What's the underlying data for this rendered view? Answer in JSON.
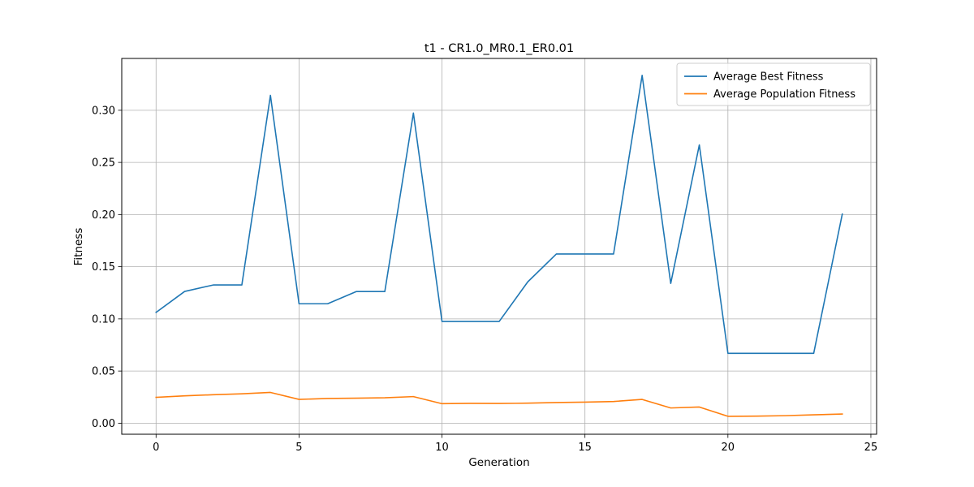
{
  "chart_data": {
    "type": "line",
    "title": "t1 - CR1.0_MR0.1_ER0.01",
    "xlabel": "Generation",
    "ylabel": "Fitness",
    "xlim": [
      -1.2,
      25.2
    ],
    "ylim": [
      -0.0106,
      0.3497
    ],
    "xticks": [
      0,
      5,
      10,
      15,
      20,
      25
    ],
    "yticks": [
      0.0,
      0.05,
      0.1,
      0.15,
      0.2,
      0.25,
      0.3
    ],
    "ytick_labels": [
      "0.00",
      "0.05",
      "0.10",
      "0.15",
      "0.20",
      "0.25",
      "0.30"
    ],
    "grid": true,
    "legend_position": "top-right",
    "x": [
      0,
      1,
      2,
      3,
      4,
      5,
      6,
      7,
      8,
      9,
      10,
      11,
      12,
      13,
      14,
      15,
      16,
      17,
      18,
      19,
      20,
      21,
      22,
      23,
      24
    ],
    "series": [
      {
        "name": "Average Best Fitness",
        "color": "#1f77b4",
        "values": [
          0.1062,
          0.1263,
          0.1325,
          0.1325,
          0.3143,
          0.1145,
          0.1145,
          0.1262,
          0.1262,
          0.2973,
          0.0975,
          0.0975,
          0.0975,
          0.1355,
          0.1622,
          0.1622,
          0.1622,
          0.3335,
          0.134,
          0.2668,
          0.067,
          0.067,
          0.067,
          0.067,
          0.2005
        ]
      },
      {
        "name": "Average Population Fitness",
        "color": "#ff7f0e",
        "values": [
          0.0248,
          0.0262,
          0.0273,
          0.0282,
          0.0295,
          0.0228,
          0.0237,
          0.024,
          0.0244,
          0.0255,
          0.0187,
          0.019,
          0.0189,
          0.0192,
          0.0198,
          0.0202,
          0.0208,
          0.0228,
          0.0146,
          0.0155,
          0.0066,
          0.0068,
          0.0072,
          0.008,
          0.0088
        ]
      }
    ]
  }
}
